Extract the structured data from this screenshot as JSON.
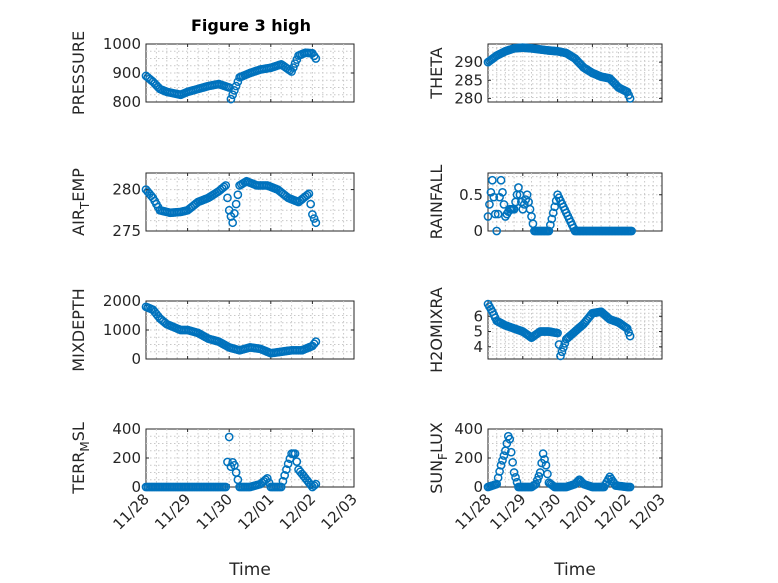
{
  "figure": {
    "title": "Figure 3 high"
  },
  "colors": {
    "marker": "#0072bd",
    "axis": "#262626",
    "grid": "#c8c8c8"
  },
  "chart_data": [
    {
      "id": "pressure",
      "type": "scatter",
      "grid": true,
      "title": "Figure 3 high",
      "ylabel": "PRESSURE",
      "xlabel": "",
      "ylim": [
        800,
        1000
      ],
      "yticks": [
        800,
        900,
        1000
      ],
      "yticklabels": [
        "800",
        "900",
        "1000"
      ],
      "xlim": [
        "2018-11-28",
        "2018-12-03"
      ],
      "xtick_labels_shown": false,
      "x": [
        "2018-11-28T00:00",
        "2018-11-28T04:00",
        "2018-11-28T08:00",
        "2018-11-28T12:00",
        "2018-11-28T16:00",
        "2018-11-28T20:00",
        "2018-11-29T00:00",
        "2018-11-29T06:00",
        "2018-11-29T12:00",
        "2018-11-29T18:00",
        "2018-11-30T00:00",
        "2018-11-30T01:00",
        "2018-11-30T06:00",
        "2018-11-30T12:00",
        "2018-11-30T18:00",
        "2018-12-01T00:00",
        "2018-12-01T06:00",
        "2018-12-01T12:00",
        "2018-12-01T16:00",
        "2018-12-01T20:00",
        "2018-12-02T00:00",
        "2018-12-02T02:00"
      ],
      "y": [
        890,
        870,
        845,
        835,
        830,
        825,
        835,
        845,
        855,
        862,
        850,
        810,
        885,
        900,
        912,
        918,
        930,
        905,
        960,
        970,
        968,
        950
      ]
    },
    {
      "id": "theta",
      "type": "scatter",
      "grid": true,
      "ylabel": "THETA",
      "xlabel": "",
      "ylim": [
        279,
        295
      ],
      "yticks": [
        280,
        285,
        290
      ],
      "yticklabels": [
        "280",
        "285",
        "290"
      ],
      "xlim": [
        "2018-11-28",
        "2018-12-03"
      ],
      "xtick_labels_shown": false,
      "x": [
        "2018-11-28T00:00",
        "2018-11-28T06:00",
        "2018-11-28T12:00",
        "2018-11-28T18:00",
        "2018-11-29T00:00",
        "2018-11-29T06:00",
        "2018-11-29T12:00",
        "2018-11-29T18:00",
        "2018-11-30T00:00",
        "2018-11-30T06:00",
        "2018-11-30T12:00",
        "2018-11-30T18:00",
        "2018-12-01T00:00",
        "2018-12-01T06:00",
        "2018-12-01T12:00",
        "2018-12-01T18:00",
        "2018-12-02T00:00",
        "2018-12-02T02:00"
      ],
      "y": [
        290,
        291.8,
        293,
        293.8,
        294,
        293.8,
        293.5,
        293.2,
        293,
        292.5,
        291,
        288.5,
        287,
        286,
        285.5,
        283,
        281.8,
        280
      ]
    },
    {
      "id": "air_temp",
      "type": "scatter",
      "grid": true,
      "ylabel": "AIR",
      "ylabel_subscript": "T",
      "ylabel_suffix": "EMP",
      "xlabel": "",
      "ylim": [
        275,
        282
      ],
      "yticks": [
        275,
        280
      ],
      "yticklabels": [
        "275",
        "280"
      ],
      "xlim": [
        "2018-11-28",
        "2018-12-03"
      ],
      "xtick_labels_shown": false,
      "x": [
        "2018-11-28T00:00",
        "2018-11-28T04:00",
        "2018-11-28T08:00",
        "2018-11-28T14:00",
        "2018-11-28T20:00",
        "2018-11-29T00:00",
        "2018-11-29T06:00",
        "2018-11-29T12:00",
        "2018-11-29T18:00",
        "2018-11-29T22:00",
        "2018-11-30T00:00",
        "2018-11-30T02:00",
        "2018-11-30T06:00",
        "2018-11-30T10:00",
        "2018-11-30T16:00",
        "2018-11-30T22:00",
        "2018-12-01T04:00",
        "2018-12-01T10:00",
        "2018-12-01T16:00",
        "2018-12-01T22:00",
        "2018-12-02T00:00",
        "2018-12-02T02:00"
      ],
      "y": [
        280,
        279,
        277.5,
        277.2,
        277.3,
        277.5,
        278.5,
        279,
        279.8,
        280.5,
        277.5,
        276,
        280.5,
        281,
        280.5,
        280.5,
        280,
        279,
        278.5,
        279.5,
        277,
        276
      ]
    },
    {
      "id": "rainfall",
      "type": "scatter",
      "grid": true,
      "ylabel": "RAINFALL",
      "xlabel": "",
      "ylim": [
        0,
        0.8
      ],
      "yticks": [
        0,
        0.5
      ],
      "yticklabels": [
        "0",
        "0.5"
      ],
      "xlim": [
        "2018-11-28",
        "2018-12-03"
      ],
      "xtick_labels_shown": false,
      "x": [
        "2018-11-28T00:00",
        "2018-11-28T03:00",
        "2018-11-28T06:00",
        "2018-11-28T09:00",
        "2018-11-28T12:00",
        "2018-11-28T15:00",
        "2018-11-28T18:00",
        "2018-11-28T21:00",
        "2018-11-29T00:00",
        "2018-11-29T03:00",
        "2018-11-29T06:00",
        "2018-11-29T08:00",
        "2018-11-29T12:00",
        "2018-11-29T18:00",
        "2018-11-30T00:00",
        "2018-11-30T12:00",
        "2018-12-01T00:00",
        "2018-12-01T12:00",
        "2018-12-02T00:00",
        "2018-12-02T03:00"
      ],
      "y": [
        0.2,
        0.7,
        0,
        0.7,
        0.2,
        0.3,
        0.3,
        0.6,
        0.3,
        0.5,
        0.2,
        0,
        0,
        0,
        0.5,
        0,
        0,
        0,
        0,
        0
      ]
    },
    {
      "id": "mixdepth",
      "type": "scatter",
      "grid": true,
      "ylabel": "MIXDEPTH",
      "xlabel": "",
      "ylim": [
        0,
        2000
      ],
      "yticks": [
        0,
        1000,
        2000
      ],
      "yticklabels": [
        "0",
        "1000",
        "2000"
      ],
      "xlim": [
        "2018-11-28",
        "2018-12-03"
      ],
      "xtick_labels_shown": false,
      "x": [
        "2018-11-28T00:00",
        "2018-11-28T04:00",
        "2018-11-28T08:00",
        "2018-11-28T12:00",
        "2018-11-28T16:00",
        "2018-11-28T20:00",
        "2018-11-29T00:00",
        "2018-11-29T06:00",
        "2018-11-29T12:00",
        "2018-11-29T18:00",
        "2018-11-30T00:00",
        "2018-11-30T06:00",
        "2018-11-30T12:00",
        "2018-11-30T18:00",
        "2018-12-01T00:00",
        "2018-12-01T06:00",
        "2018-12-01T12:00",
        "2018-12-01T18:00",
        "2018-12-02T00:00",
        "2018-12-02T02:00"
      ],
      "y": [
        1800,
        1700,
        1400,
        1200,
        1100,
        1000,
        1000,
        900,
        700,
        600,
        400,
        300,
        400,
        350,
        200,
        250,
        300,
        300,
        450,
        600
      ]
    },
    {
      "id": "h2omixra",
      "type": "scatter",
      "grid": true,
      "ylabel": "H2OMIXRA",
      "xlabel": "",
      "ylim": [
        3.2,
        7
      ],
      "yticks": [
        4,
        5,
        6
      ],
      "yticklabels": [
        "4",
        "5",
        "6"
      ],
      "xlim": [
        "2018-11-28",
        "2018-12-03"
      ],
      "xtick_labels_shown": false,
      "x": [
        "2018-11-28T00:00",
        "2018-11-28T03:00",
        "2018-11-28T06:00",
        "2018-11-28T12:00",
        "2018-11-28T18:00",
        "2018-11-29T00:00",
        "2018-11-29T06:00",
        "2018-11-29T12:00",
        "2018-11-29T18:00",
        "2018-11-30T00:00",
        "2018-11-30T02:00",
        "2018-11-30T06:00",
        "2018-11-30T12:00",
        "2018-11-30T18:00",
        "2018-12-01T00:00",
        "2018-12-01T06:00",
        "2018-12-01T12:00",
        "2018-12-01T18:00",
        "2018-12-02T00:00",
        "2018-12-02T02:00"
      ],
      "y": [
        6.8,
        6.3,
        5.7,
        5.4,
        5.2,
        5.0,
        4.6,
        5.0,
        5.0,
        4.9,
        3.4,
        4.5,
        5.0,
        5.5,
        6.2,
        6.3,
        5.8,
        5.6,
        5.2,
        4.7
      ]
    },
    {
      "id": "terr_msl",
      "type": "scatter",
      "grid": true,
      "ylabel": "TERR",
      "ylabel_subscript": "M",
      "ylabel_suffix": "SL",
      "xlabel": "Time",
      "ylim": [
        0,
        400
      ],
      "yticks": [
        0,
        200,
        400
      ],
      "yticklabels": [
        "0",
        "200",
        "400"
      ],
      "xlim": [
        "2018-11-28",
        "2018-12-03"
      ],
      "xticks": [
        "2018-11-28",
        "2018-11-29",
        "2018-11-30",
        "2018-12-01",
        "2018-12-02",
        "2018-12-03"
      ],
      "xticklabels": [
        "11/28",
        "11/29",
        "11/30",
        "12/01",
        "12/02",
        "12/03"
      ],
      "x": [
        "2018-11-28T00:00",
        "2018-11-28T12:00",
        "2018-11-29T00:00",
        "2018-11-29T12:00",
        "2018-11-29T22:00",
        "2018-11-30T00:00",
        "2018-11-30T01:00",
        "2018-11-30T02:00",
        "2018-11-30T03:00",
        "2018-11-30T06:00",
        "2018-11-30T12:00",
        "2018-11-30T18:00",
        "2018-11-30T22:00",
        "2018-12-01T00:00",
        "2018-12-01T06:00",
        "2018-12-01T10:00",
        "2018-12-01T12:00",
        "2018-12-01T14:00",
        "2018-12-01T16:00",
        "2018-12-02T00:00",
        "2018-12-02T02:00"
      ],
      "y": [
        0,
        0,
        0,
        0,
        0,
        345,
        140,
        170,
        150,
        0,
        0,
        20,
        60,
        0,
        0,
        160,
        230,
        230,
        120,
        0,
        20
      ]
    },
    {
      "id": "sun_flux",
      "type": "scatter",
      "grid": true,
      "ylabel": "SUN",
      "ylabel_subscript": "F",
      "ylabel_suffix": "LUX",
      "xlabel": "Time",
      "ylim": [
        0,
        400
      ],
      "yticks": [
        0,
        200,
        400
      ],
      "yticklabels": [
        "0",
        "200",
        "400"
      ],
      "xlim": [
        "2018-11-28",
        "2018-12-03"
      ],
      "xticks": [
        "2018-11-28",
        "2018-11-29",
        "2018-11-30",
        "2018-12-01",
        "2018-12-02",
        "2018-12-03"
      ],
      "xticklabels": [
        "11/28",
        "11/29",
        "11/30",
        "12/01",
        "12/02",
        "12/03"
      ],
      "x": [
        "2018-11-28T00:00",
        "2018-11-28T06:00",
        "2018-11-28T09:00",
        "2018-11-28T12:00",
        "2018-11-28T14:00",
        "2018-11-28T15:00",
        "2018-11-28T16:00",
        "2018-11-28T18:00",
        "2018-11-28T21:00",
        "2018-11-29T00:00",
        "2018-11-29T06:00",
        "2018-11-29T09:00",
        "2018-11-29T12:00",
        "2018-11-29T14:00",
        "2018-11-29T16:00",
        "2018-11-29T18:00",
        "2018-11-29T22:00",
        "2018-11-30T06:00",
        "2018-11-30T12:00",
        "2018-11-30T15:00",
        "2018-11-30T18:00",
        "2018-12-01T00:00",
        "2018-12-01T08:00",
        "2018-12-01T12:00",
        "2018-12-01T16:00",
        "2018-12-02T00:00",
        "2018-12-02T02:00"
      ],
      "y": [
        0,
        20,
        150,
        250,
        350,
        330,
        240,
        100,
        0,
        0,
        0,
        20,
        100,
        230,
        150,
        30,
        0,
        0,
        20,
        50,
        20,
        0,
        0,
        70,
        10,
        0,
        0
      ]
    }
  ]
}
